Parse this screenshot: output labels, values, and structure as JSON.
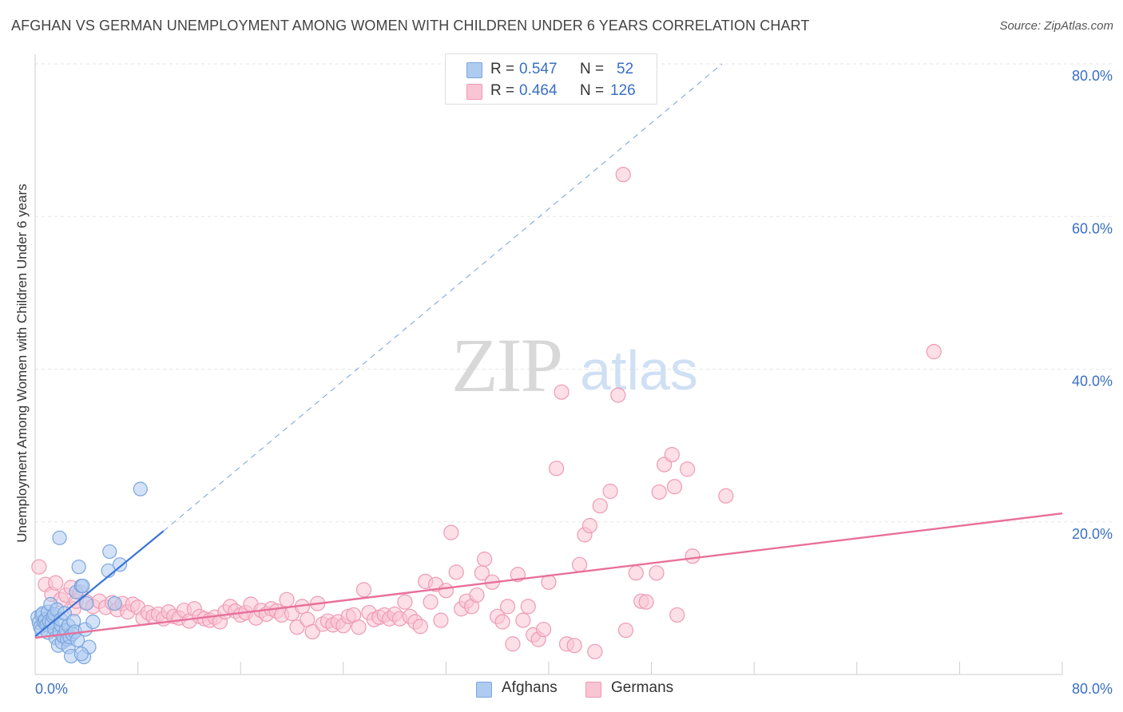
{
  "title": "AFGHAN VS GERMAN UNEMPLOYMENT AMONG WOMEN WITH CHILDREN UNDER 6 YEARS CORRELATION CHART",
  "source": "Source: ZipAtlas.com",
  "watermark": {
    "zip": "ZIP",
    "atlas": "atlas"
  },
  "legend": {
    "rows": [
      {
        "r_label": "R = ",
        "r_value": "0.547",
        "n_label": "N = ",
        "n_value": "52",
        "color": "#aecbf0",
        "border": "#7ba6de"
      },
      {
        "r_label": "R = ",
        "r_value": "0.464",
        "n_label": "N = ",
        "n_value": "126",
        "color": "#f9c4d4",
        "border": "#ee9ab4"
      }
    ]
  },
  "bottom_legend": [
    {
      "label": "Afghans",
      "color": "#aecbf0",
      "border": "#7ba6de"
    },
    {
      "label": "Germans",
      "color": "#f9c4d4",
      "border": "#ee9ab4"
    }
  ],
  "chart_data": {
    "type": "scatter",
    "title": "AFGHAN VS GERMAN UNEMPLOYMENT AMONG WOMEN WITH CHILDREN UNDER 6 YEARS CORRELATION CHART",
    "xlabel": "",
    "ylabel": "Unemployment Among Women with Children Under 6 years",
    "xlim": [
      0,
      80
    ],
    "ylim": [
      0,
      80
    ],
    "x_tick_labels": [
      "0.0%",
      "80.0%"
    ],
    "y_tick_labels": [
      "80.0%",
      "60.0%",
      "40.0%",
      "20.0%"
    ],
    "y_ticks": [
      80,
      60,
      40,
      20
    ],
    "grid": true,
    "colors": {
      "afghans": "#7ba6de",
      "afghans_fill": "#aecbf0",
      "afghans_line": "#3a74d6",
      "germans": "#ee9ab4",
      "germans_fill": "#f9c4d4",
      "germans_line": "#e8709a",
      "axis_label": "#3a6fc4",
      "grid": "#e6e6e6"
    },
    "series": [
      {
        "name": "Afghans",
        "points": [
          [
            0.2,
            7.5
          ],
          [
            0.3,
            6.8
          ],
          [
            0.4,
            6.2
          ],
          [
            0.5,
            7.8
          ],
          [
            0.5,
            5.8
          ],
          [
            0.6,
            8.0
          ],
          [
            0.7,
            6.9
          ],
          [
            0.8,
            7.2
          ],
          [
            0.9,
            6.5
          ],
          [
            1.0,
            8.2
          ],
          [
            1.0,
            5.5
          ],
          [
            1.1,
            7.0
          ],
          [
            1.2,
            9.2
          ],
          [
            1.3,
            6.8
          ],
          [
            1.4,
            7.6
          ],
          [
            1.5,
            6.0
          ],
          [
            1.5,
            7.9
          ],
          [
            1.6,
            4.8
          ],
          [
            1.7,
            8.5
          ],
          [
            1.8,
            3.8
          ],
          [
            1.9,
            5.6
          ],
          [
            2.0,
            6.5
          ],
          [
            2.0,
            7.2
          ],
          [
            2.1,
            4.2
          ],
          [
            2.2,
            5.0
          ],
          [
            2.3,
            8.0
          ],
          [
            2.4,
            5.8
          ],
          [
            2.5,
            4.6
          ],
          [
            2.6,
            3.6
          ],
          [
            2.6,
            6.4
          ],
          [
            2.7,
            4.9
          ],
          [
            2.8,
            2.4
          ],
          [
            2.9,
            5.3
          ],
          [
            3.0,
            7.0
          ],
          [
            3.1,
            5.6
          ],
          [
            3.2,
            10.8
          ],
          [
            3.3,
            4.5
          ],
          [
            3.4,
            14.1
          ],
          [
            3.6,
            11.6
          ],
          [
            3.8,
            2.3
          ],
          [
            3.9,
            5.9
          ],
          [
            4.0,
            9.3
          ],
          [
            4.2,
            3.6
          ],
          [
            1.9,
            17.9
          ],
          [
            3.7,
            11.6
          ],
          [
            3.6,
            2.7
          ],
          [
            4.5,
            6.9
          ],
          [
            5.7,
            13.6
          ],
          [
            6.2,
            9.3
          ],
          [
            6.6,
            14.4
          ],
          [
            5.8,
            16.1
          ],
          [
            8.2,
            24.3
          ]
        ]
      },
      {
        "name": "Germans",
        "points": [
          [
            0.3,
            14.1
          ],
          [
            0.8,
            11.8
          ],
          [
            1.3,
            10.5
          ],
          [
            1.6,
            12.0
          ],
          [
            2.0,
            9.8
          ],
          [
            2.4,
            10.4
          ],
          [
            2.8,
            11.4
          ],
          [
            3.0,
            8.6
          ],
          [
            3.2,
            9.6
          ],
          [
            3.5,
            10.8
          ],
          [
            4.0,
            9.5
          ],
          [
            4.5,
            8.9
          ],
          [
            5.0,
            9.6
          ],
          [
            5.5,
            8.8
          ],
          [
            6.0,
            9.4
          ],
          [
            6.4,
            8.5
          ],
          [
            6.8,
            9.3
          ],
          [
            7.2,
            8.2
          ],
          [
            7.6,
            9.2
          ],
          [
            8.0,
            8.8
          ],
          [
            8.4,
            7.4
          ],
          [
            8.8,
            8.1
          ],
          [
            9.2,
            7.6
          ],
          [
            9.6,
            7.9
          ],
          [
            10.0,
            7.3
          ],
          [
            10.4,
            8.2
          ],
          [
            10.8,
            7.6
          ],
          [
            11.2,
            7.4
          ],
          [
            11.6,
            8.4
          ],
          [
            12.0,
            7.0
          ],
          [
            12.4,
            8.6
          ],
          [
            12.8,
            7.6
          ],
          [
            13.2,
            7.3
          ],
          [
            13.6,
            7.1
          ],
          [
            14.0,
            7.5
          ],
          [
            14.4,
            6.9
          ],
          [
            14.8,
            8.2
          ],
          [
            15.2,
            8.9
          ],
          [
            15.6,
            8.3
          ],
          [
            16.0,
            7.8
          ],
          [
            16.4,
            8.1
          ],
          [
            16.8,
            9.2
          ],
          [
            17.2,
            7.4
          ],
          [
            17.6,
            8.4
          ],
          [
            18.0,
            7.9
          ],
          [
            18.4,
            8.6
          ],
          [
            18.8,
            8.3
          ],
          [
            19.2,
            7.8
          ],
          [
            19.6,
            9.8
          ],
          [
            20.0,
            8.0
          ],
          [
            20.4,
            6.2
          ],
          [
            20.8,
            8.9
          ],
          [
            21.2,
            7.2
          ],
          [
            21.6,
            5.6
          ],
          [
            22.0,
            9.3
          ],
          [
            22.4,
            6.6
          ],
          [
            22.8,
            7.0
          ],
          [
            23.2,
            6.5
          ],
          [
            23.6,
            6.9
          ],
          [
            24.0,
            6.4
          ],
          [
            24.4,
            7.6
          ],
          [
            24.8,
            7.8
          ],
          [
            25.2,
            6.2
          ],
          [
            25.6,
            11.1
          ],
          [
            26.0,
            8.1
          ],
          [
            26.4,
            7.2
          ],
          [
            26.8,
            7.5
          ],
          [
            27.2,
            7.8
          ],
          [
            27.6,
            7.3
          ],
          [
            28.0,
            7.9
          ],
          [
            28.4,
            7.3
          ],
          [
            28.8,
            9.5
          ],
          [
            29.2,
            7.6
          ],
          [
            29.6,
            6.9
          ],
          [
            30.0,
            6.3
          ],
          [
            30.4,
            12.2
          ],
          [
            30.8,
            9.5
          ],
          [
            31.2,
            11.8
          ],
          [
            31.6,
            7.1
          ],
          [
            32.0,
            11.0
          ],
          [
            32.4,
            18.6
          ],
          [
            32.8,
            13.4
          ],
          [
            33.2,
            8.6
          ],
          [
            33.6,
            9.6
          ],
          [
            34.0,
            8.9
          ],
          [
            34.4,
            10.4
          ],
          [
            34.8,
            13.3
          ],
          [
            35.0,
            15.1
          ],
          [
            35.6,
            12.1
          ],
          [
            36.0,
            7.6
          ],
          [
            36.4,
            6.9
          ],
          [
            36.8,
            8.9
          ],
          [
            37.2,
            4.0
          ],
          [
            37.6,
            13.1
          ],
          [
            38.0,
            7.1
          ],
          [
            38.4,
            8.9
          ],
          [
            38.8,
            5.2
          ],
          [
            39.2,
            4.6
          ],
          [
            39.6,
            5.9
          ],
          [
            40.0,
            12.1
          ],
          [
            40.6,
            27.0
          ],
          [
            41.0,
            37.0
          ],
          [
            41.4,
            4.0
          ],
          [
            42.0,
            3.8
          ],
          [
            42.4,
            14.4
          ],
          [
            42.8,
            18.3
          ],
          [
            43.2,
            19.5
          ],
          [
            43.6,
            3.0
          ],
          [
            44.0,
            22.1
          ],
          [
            44.8,
            24.0
          ],
          [
            45.4,
            36.6
          ],
          [
            45.8,
            65.5
          ],
          [
            46.0,
            5.8
          ],
          [
            46.8,
            13.3
          ],
          [
            47.2,
            9.6
          ],
          [
            47.6,
            9.5
          ],
          [
            48.4,
            13.3
          ],
          [
            48.6,
            23.9
          ],
          [
            49.0,
            27.5
          ],
          [
            49.6,
            28.8
          ],
          [
            49.8,
            24.6
          ],
          [
            50.0,
            7.8
          ],
          [
            50.8,
            26.9
          ],
          [
            51.2,
            15.5
          ],
          [
            53.8,
            23.4
          ],
          [
            70.0,
            42.3
          ]
        ]
      }
    ],
    "trend_lines": [
      {
        "series": "Afghans",
        "from": [
          0,
          5.0
        ],
        "to": [
          10,
          18.8
        ],
        "dashed_extension_to": [
          53.5,
          80.0
        ]
      },
      {
        "series": "Germans",
        "from": [
          0,
          4.8
        ],
        "to": [
          80,
          21.1
        ]
      }
    ]
  }
}
